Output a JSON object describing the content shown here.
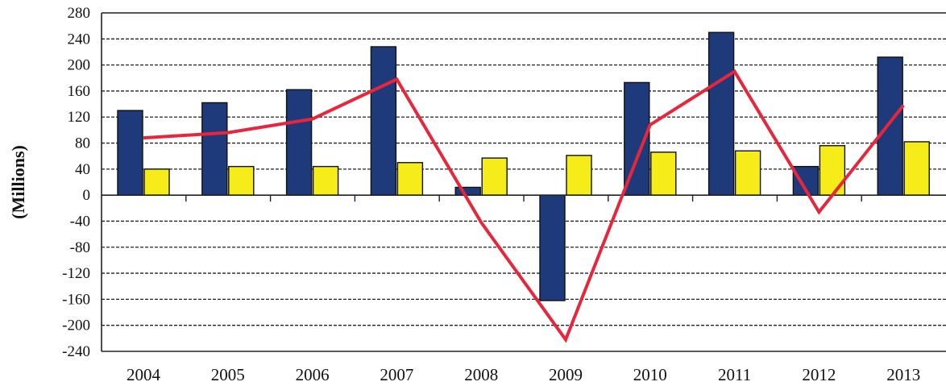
{
  "chart_data": {
    "type": "bar",
    "categories": [
      "2004",
      "2005",
      "2006",
      "2007",
      "2008",
      "2009",
      "2010",
      "2011",
      "2012",
      "2013"
    ],
    "series": [
      {
        "type": "bar",
        "color": "#1f3a7a",
        "values": [
          130,
          142,
          162,
          228,
          12,
          -162,
          173,
          250,
          44,
          212
        ]
      },
      {
        "type": "bar",
        "color": "#f5ec1a",
        "values": [
          40,
          44,
          44,
          50,
          57,
          61,
          66,
          68,
          76,
          82
        ]
      },
      {
        "type": "line",
        "color": "#e8263b",
        "values": [
          88,
          96,
          117,
          178,
          -42,
          -222,
          108,
          190,
          -26,
          138
        ]
      }
    ],
    "xlabel": "",
    "ylabel": "(Millions)",
    "ylim": [
      -240,
      280
    ],
    "yticks": [
      280,
      240,
      200,
      160,
      120,
      80,
      40,
      0,
      -40,
      -80,
      -120,
      -160,
      -200,
      -240
    ],
    "grid": true,
    "legend": "none"
  }
}
